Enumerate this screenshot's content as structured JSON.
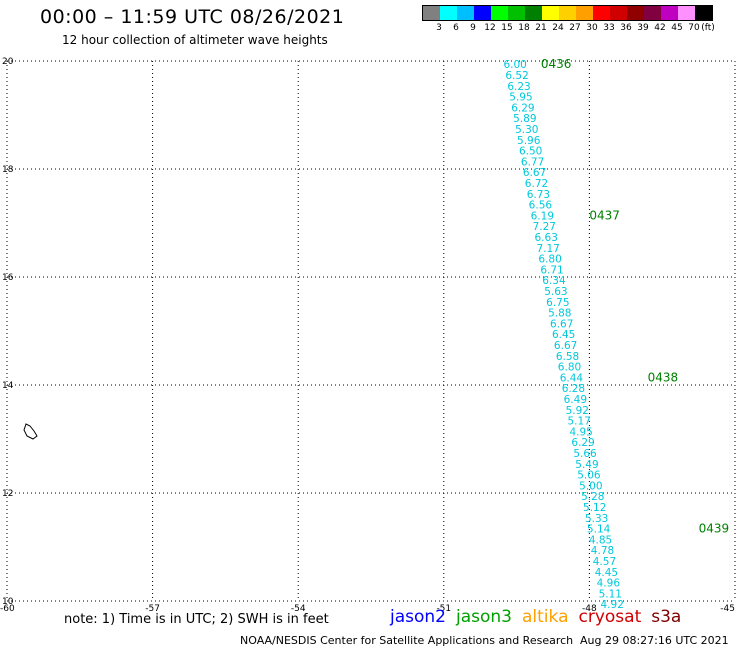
{
  "header": {
    "title": "00:00 – 11:59 UTC 08/26/2021",
    "subtitle": "12 hour collection of altimeter wave heights"
  },
  "legend": {
    "colors": [
      "#808080",
      "#00ffff",
      "#00bfff",
      "#0000ff",
      "#00ff00",
      "#00c000",
      "#008000",
      "#ffff00",
      "#ffd000",
      "#ffa000",
      "#ff0000",
      "#d00000",
      "#900000",
      "#800040",
      "#c000c0",
      "#ff90ff",
      "#000000"
    ],
    "labels": [
      "3",
      "6",
      "9",
      "12",
      "15",
      "18",
      "21",
      "24",
      "27",
      "30",
      "33",
      "36",
      "39",
      "42",
      "45",
      "70",
      "(ft)"
    ]
  },
  "axes": {
    "lon_ticks": [
      "-60",
      "-57",
      "-54",
      "-51",
      "-48",
      "-45"
    ],
    "lat_ticks": [
      "20",
      "18",
      "16",
      "14",
      "12",
      "10"
    ]
  },
  "track": {
    "color": "#00c8dc",
    "points": [
      [
        -49.53,
        19.94,
        "6.00"
      ],
      [
        -49.49,
        19.74,
        "6.52"
      ],
      [
        -49.45,
        19.54,
        "6.23"
      ],
      [
        -49.41,
        19.34,
        "5.95"
      ],
      [
        -49.37,
        19.14,
        "6.29"
      ],
      [
        -49.33,
        18.94,
        "5.89"
      ],
      [
        -49.29,
        18.74,
        "5.30"
      ],
      [
        -49.25,
        18.54,
        "5.96"
      ],
      [
        -49.21,
        18.34,
        "6.50"
      ],
      [
        -49.17,
        18.14,
        "6.77"
      ],
      [
        -49.13,
        17.94,
        "6.67"
      ],
      [
        -49.09,
        17.74,
        "6.72"
      ],
      [
        -49.05,
        17.54,
        "6.73"
      ],
      [
        -49.01,
        17.34,
        "6.56"
      ],
      [
        -48.97,
        17.14,
        "6.19"
      ],
      [
        -48.93,
        16.94,
        "7.27"
      ],
      [
        -48.89,
        16.74,
        "6.63"
      ],
      [
        -48.85,
        16.54,
        "7.17"
      ],
      [
        -48.81,
        16.34,
        "6.80"
      ],
      [
        -48.77,
        16.14,
        "6.71"
      ],
      [
        -48.73,
        15.94,
        "6.34"
      ],
      [
        -48.69,
        15.74,
        "5.63"
      ],
      [
        -48.65,
        15.54,
        "6.75"
      ],
      [
        -48.61,
        15.34,
        "5.88"
      ],
      [
        -48.57,
        15.14,
        "6.67"
      ],
      [
        -48.53,
        14.94,
        "6.45"
      ],
      [
        -48.49,
        14.74,
        "6.67"
      ],
      [
        -48.45,
        14.54,
        "6.58"
      ],
      [
        -48.41,
        14.34,
        "6.80"
      ],
      [
        -48.37,
        14.14,
        "6.44"
      ],
      [
        -48.33,
        13.94,
        "6.28"
      ],
      [
        -48.29,
        13.74,
        "6.49"
      ],
      [
        -48.25,
        13.54,
        "5.92"
      ],
      [
        -48.21,
        13.34,
        "5.17"
      ],
      [
        -48.17,
        13.14,
        "4.95"
      ],
      [
        -48.13,
        12.94,
        "6.29"
      ],
      [
        -48.09,
        12.74,
        "5.66"
      ],
      [
        -48.05,
        12.54,
        "5.49"
      ],
      [
        -48.01,
        12.34,
        "5.06"
      ],
      [
        -47.97,
        12.14,
        "5.00"
      ],
      [
        -47.93,
        11.94,
        "5.28"
      ],
      [
        -47.89,
        11.74,
        "5.12"
      ],
      [
        -47.85,
        11.54,
        "5.33"
      ],
      [
        -47.81,
        11.34,
        "5.14"
      ],
      [
        -47.77,
        11.14,
        "4.85"
      ],
      [
        -47.73,
        10.94,
        "4.78"
      ],
      [
        -47.69,
        10.74,
        "4.57"
      ],
      [
        -47.65,
        10.54,
        "4.45"
      ],
      [
        -47.61,
        10.34,
        "4.96"
      ],
      [
        -47.57,
        10.14,
        "5.11"
      ],
      [
        -47.53,
        9.94,
        "4.92"
      ]
    ],
    "time_labels": [
      {
        "lon": -49.0,
        "lat": 19.94,
        "text": "0436"
      },
      {
        "lon": -48.0,
        "lat": 17.14,
        "text": "0437"
      },
      {
        "lon": -46.8,
        "lat": 14.14,
        "text": "0438"
      },
      {
        "lon": -45.75,
        "lat": 11.34,
        "text": "0439"
      }
    ],
    "time_color": "#008000"
  },
  "footer": {
    "note": "note: 1) Time is in UTC; 2) SWH is in feet",
    "satellites": [
      {
        "name": "jason2",
        "color": "#0000ff"
      },
      {
        "name": "jason3",
        "color": "#00a000"
      },
      {
        "name": "altika",
        "color": "#ffa000"
      },
      {
        "name": "cryosat",
        "color": "#d00000"
      },
      {
        "name": "s3a",
        "color": "#800000"
      }
    ],
    "credit": "NOAA/NESDIS Center for Satellite Applications and Research",
    "timestamp": "Aug 29 08:27:16 UTC 2021"
  }
}
